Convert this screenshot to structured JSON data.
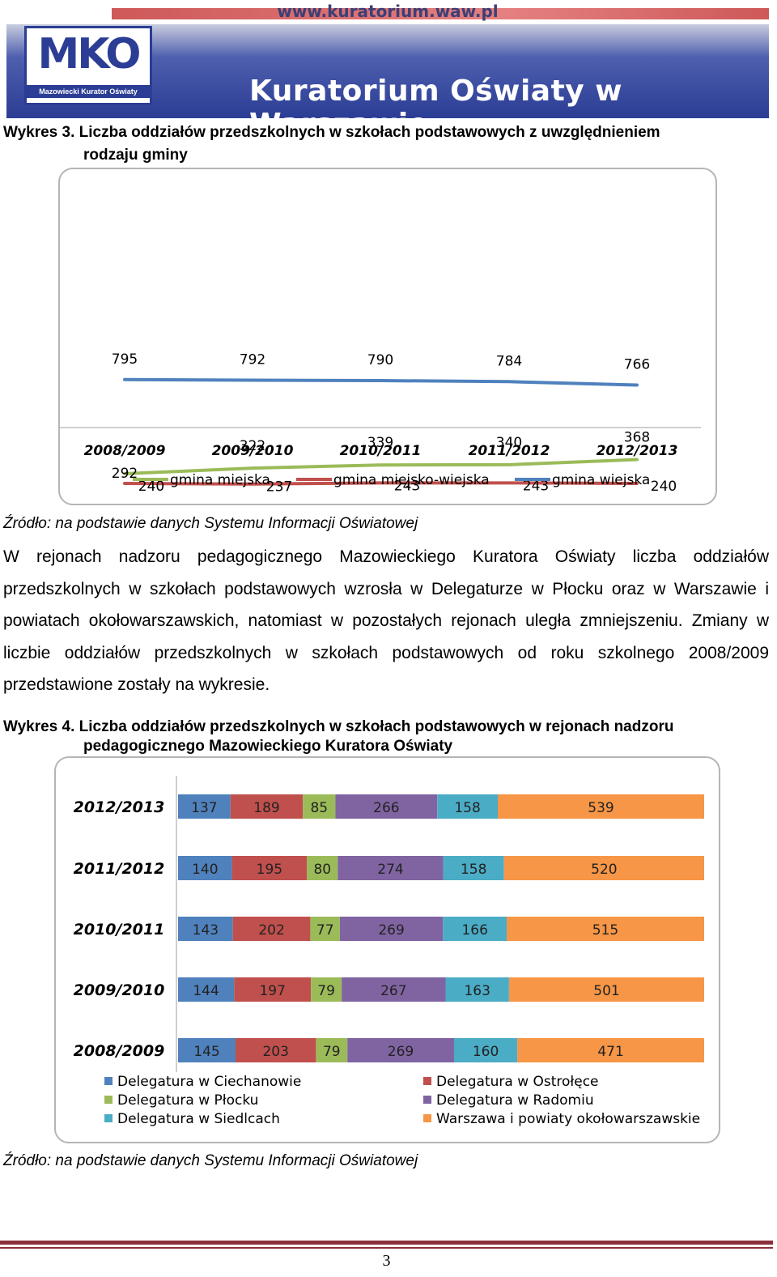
{
  "header": {
    "url": "www.kuratorium.waw.pl",
    "logo_letters": "MKO",
    "logo_subtitle": "Mazowiecki Kurator Oświaty",
    "title": "Kuratorium Oświaty w Warszawie",
    "colors": {
      "brand": "#2b3d94",
      "accent": "#c53b3b"
    }
  },
  "chart1_caption": {
    "label": "Wykres 3.",
    "line1": "Liczba oddziałów przedszkolnych w szkołach podstawowych z uwzględnieniem",
    "line2": "rodzaju gminy"
  },
  "chart2_caption": {
    "label": "Wykres 4.",
    "line1": "Liczba oddziałów przedszkolnych w szkołach podstawowych w  rejonach nadzoru",
    "line2": "pedagogicznego Mazowieckiego Kuratora Oświaty"
  },
  "source_note": "Źródło: na podstawie danych Systemu Informacji Oświatowej",
  "paragraph": "W rejonach nadzoru pedagogicznego Mazowieckiego Kuratora Oświaty liczba oddziałów przedszkolnych w szkołach podstawowych wzrosła w Delegaturze w Płocku oraz w Warszawie i powiatach okołowarszawskich, natomiast w pozostałych rejonach uległa zmniejszeniu. Zmiany w liczbie oddziałów przedszkolnych w szkołach podstawowych od roku szkolnego 2008/2009 przedstawione zostały na wykresie.",
  "page_number": "3",
  "chart_data": [
    {
      "type": "line",
      "categories": [
        "2008/2009",
        "2009/2010",
        "2010/2011",
        "2011/2012",
        "2012/2013"
      ],
      "series": [
        {
          "name": "gmina miejska",
          "color": "#9bbb59",
          "values": [
            292,
            322,
            339,
            340,
            368
          ]
        },
        {
          "name": "gmina miejsko-wiejska",
          "color": "#c0504d",
          "values": [
            240,
            237,
            243,
            243,
            240
          ]
        },
        {
          "name": "gmina wiejska",
          "color": "#4f81bd",
          "values": [
            795,
            792,
            790,
            784,
            766
          ]
        }
      ],
      "grid": false,
      "legend": "bottom"
    },
    {
      "type": "bar",
      "orientation": "horizontal",
      "stacked": true,
      "categories": [
        "2012/2013",
        "2011/2012",
        "2010/2011",
        "2009/2010",
        "2008/2009"
      ],
      "series": [
        {
          "name": "Delegatura w Ciechanowie",
          "color": "#4f81bd",
          "values": [
            137,
            140,
            143,
            144,
            145
          ]
        },
        {
          "name": "Delegatura w Ostrołęce",
          "color": "#c0504d",
          "values": [
            189,
            195,
            202,
            197,
            203
          ]
        },
        {
          "name": "Delegatura w Płocku",
          "color": "#9bbb59",
          "values": [
            85,
            80,
            77,
            79,
            79
          ]
        },
        {
          "name": "Delegatura w Radomiu",
          "color": "#8064a2",
          "values": [
            266,
            274,
            269,
            267,
            269
          ]
        },
        {
          "name": "Delegatura w Siedlcach",
          "color": "#4bacc6",
          "values": [
            158,
            158,
            166,
            163,
            160
          ]
        },
        {
          "name": "Warszawa i powiaty okołowarszawskie",
          "color": "#f79646",
          "values": [
            539,
            520,
            515,
            501,
            471
          ]
        }
      ],
      "grid": false,
      "legend": "bottom"
    }
  ]
}
